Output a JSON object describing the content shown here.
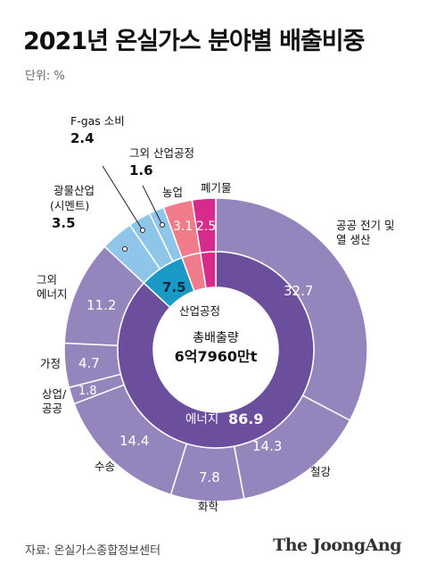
{
  "header": {
    "title": "2021년 온실가스 분야별 배출비중",
    "unit": "단위: %"
  },
  "footer": {
    "source": "자료: 온실가스종합정보센터",
    "brand": "The JoongAng"
  },
  "colors": {
    "outer": "#9486bd",
    "inner_energy": "#6b4e9c",
    "inner_industry": "#1a98c6",
    "fgas": "#8ec5e8",
    "other_industry": "#8ec5e8",
    "minerals": "#8ec5e8",
    "agriculture": "#f07b8a",
    "waste": "#d62b8a",
    "separator": "#ffffff"
  },
  "chart_data": {
    "type": "pie",
    "center": {
      "label": "총배출량",
      "value": "6억7960만t"
    },
    "inner": [
      {
        "name": "에너지",
        "value": 86.9
      },
      {
        "name": "산업공정",
        "value": 7.5
      },
      {
        "name": "농업",
        "value": 3.1
      },
      {
        "name": "폐기물",
        "value": 2.5
      }
    ],
    "outer": [
      {
        "name": "공공 전기 및 열 생산",
        "value": 32.7
      },
      {
        "name": "철강",
        "value": 14.3
      },
      {
        "name": "화학",
        "value": 7.8
      },
      {
        "name": "수송",
        "value": 14.4
      },
      {
        "name": "상업/공공",
        "value": 1.8
      },
      {
        "name": "가정",
        "value": 4.7
      },
      {
        "name": "그외 에너지",
        "value": 11.2
      },
      {
        "name": "광물산업 (시멘트)",
        "value": 3.5
      },
      {
        "name": "F-gas 소비",
        "value": 2.4
      },
      {
        "name": "그외 산업공정",
        "value": 1.6
      },
      {
        "name": "농업",
        "value": 3.1
      },
      {
        "name": "폐기물",
        "value": 2.5
      }
    ],
    "labels": {
      "public_power": "공공 전기 및",
      "public_power_2": "열 생산",
      "steel": "철강",
      "chemical": "화학",
      "transport": "수송",
      "commercial": "상업/",
      "commercial_2": "공공",
      "household": "가정",
      "other_energy": "그외",
      "other_energy_2": "에너지",
      "minerals": "광물산업",
      "minerals_2": "(시멘트)",
      "fgas": "F-gas 소비",
      "other_industry": "그외 산업공정",
      "agriculture": "농업",
      "waste": "폐기물",
      "industry_process": "산업공정",
      "energy": "에너지"
    },
    "value_labels": {
      "public_power": "32.7",
      "steel": "14.3",
      "chemical": "7.8",
      "transport": "14.4",
      "commercial": "1.8",
      "household": "4.7",
      "other_energy": "11.2",
      "minerals": "3.5",
      "fgas": "2.4",
      "other_industry": "1.6",
      "agriculture": "3.1",
      "waste": "2.5",
      "industry_process": "7.5",
      "energy": "86.9"
    }
  }
}
